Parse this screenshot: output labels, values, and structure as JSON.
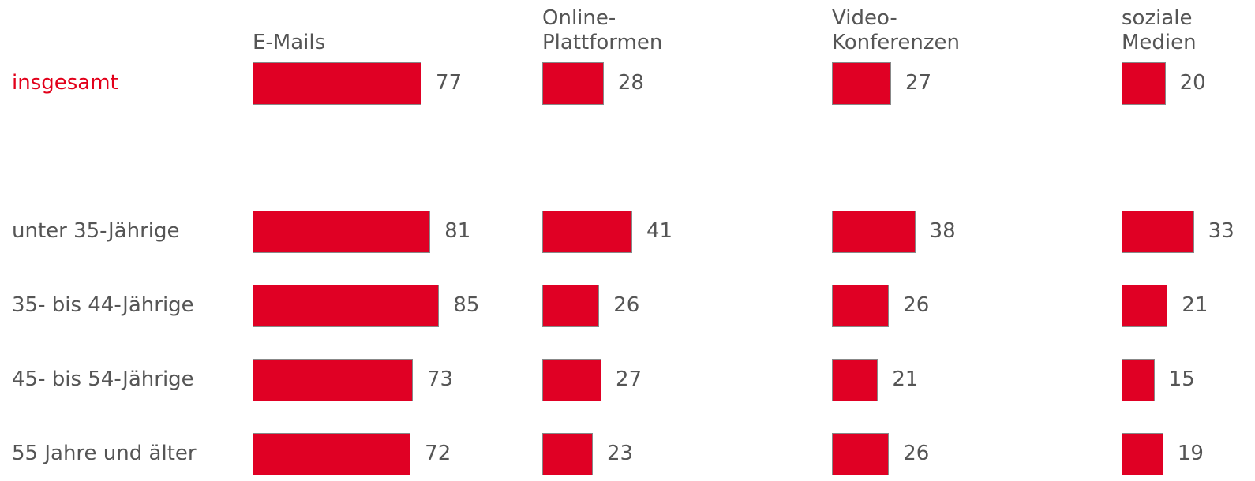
{
  "chart_data": {
    "type": "bar",
    "categories": [
      "insgesamt",
      "unter 35-Jährige",
      "35- bis 44-Jährige",
      "45- bis 54-Jährige",
      "55 Jahre und älter"
    ],
    "category_colors": [
      "#e2001a",
      "#555555",
      "#555555",
      "#555555",
      "#555555"
    ],
    "series": [
      {
        "name": "E-Mails",
        "color": "#e00024",
        "values": [
          77,
          81,
          85,
          73,
          72
        ]
      },
      {
        "name": "Online-\nPlattformen",
        "color": "#e00024",
        "values": [
          28,
          41,
          26,
          27,
          23
        ]
      },
      {
        "name": "Video-\nKonferenzen",
        "color": "#e00024",
        "values": [
          27,
          38,
          26,
          21,
          26
        ]
      },
      {
        "name": "soziale\nMedien",
        "color": "#e00024",
        "values": [
          20,
          33,
          21,
          15,
          19
        ]
      }
    ]
  }
}
